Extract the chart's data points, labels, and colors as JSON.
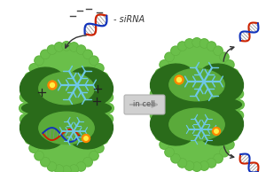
{
  "bg_color": "#ffffff",
  "dark_green": "#2a6b1a",
  "mid_green": "#3a8a25",
  "light_green": "#5aaa3a",
  "dot_green": "#6abf4a",
  "dna_red": "#cc2200",
  "dna_blue": "#1133bb",
  "snowflake_color": "#6ec8e8",
  "orange_dot": "#ff8800",
  "yellow_dot": "#ffee44",
  "plus_color": "#222222",
  "minus_color": "#444444",
  "arrow_color": "#333333",
  "sirna_label": "siRNA",
  "incell_label": "in cell",
  "incell_label_color": "#555555",
  "incell_box_color": "#c8c8c8",
  "incell_arrow_color": "#999999"
}
